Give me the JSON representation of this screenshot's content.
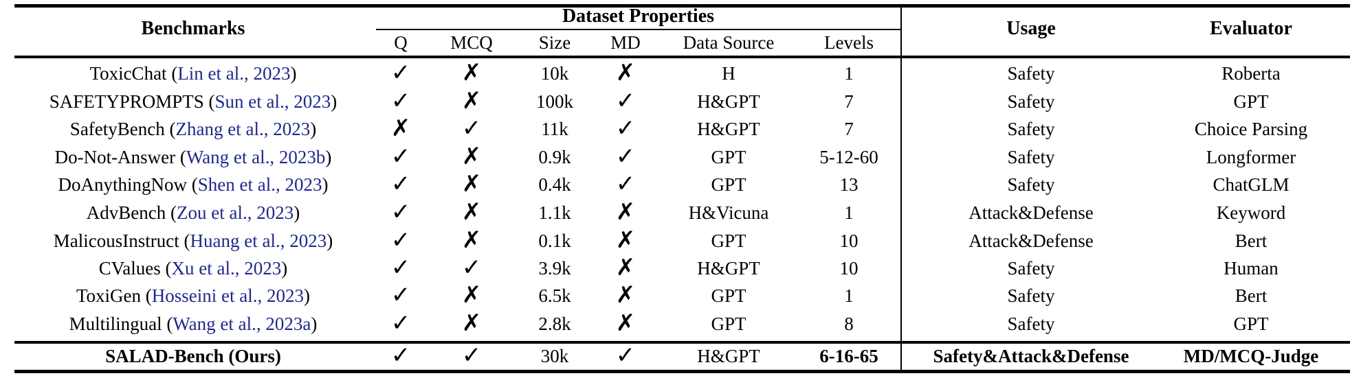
{
  "table": {
    "headers": {
      "benchmarks": "Benchmarks",
      "group": "Dataset Properties",
      "usage": "Usage",
      "evaluator": "Evaluator",
      "sub": [
        "Q",
        "MCQ",
        "Size",
        "MD",
        "Data Source",
        "Levels"
      ]
    },
    "rows": [
      {
        "name": "ToxicChat",
        "cite": "Lin et al., 2023",
        "q": "✓",
        "mcq": "✗",
        "size": "10k",
        "md": "✗",
        "source": "H",
        "levels": "1",
        "usage": "Safety",
        "evaluator": "Roberta"
      },
      {
        "name": "SAFETYPROMPTS",
        "cite": "Sun et al., 2023",
        "q": "✓",
        "mcq": "✗",
        "size": "100k",
        "md": "✓",
        "source": "H&GPT",
        "levels": "7",
        "usage": "Safety",
        "evaluator": "GPT"
      },
      {
        "name": "SafetyBench",
        "cite": "Zhang et al., 2023",
        "q": "✗",
        "mcq": "✓",
        "size": "11k",
        "md": "✓",
        "source": "H&GPT",
        "levels": "7",
        "usage": "Safety",
        "evaluator": "Choice Parsing"
      },
      {
        "name": "Do-Not-Answer",
        "cite": "Wang et al., 2023b",
        "q": "✓",
        "mcq": "✗",
        "size": "0.9k",
        "md": "✓",
        "source": "GPT",
        "levels": "5-12-60",
        "usage": "Safety",
        "evaluator": "Longformer"
      },
      {
        "name": "DoAnythingNow",
        "cite": "Shen et al., 2023",
        "q": "✓",
        "mcq": "✗",
        "size": "0.4k",
        "md": "✓",
        "source": "GPT",
        "levels": "13",
        "usage": "Safety",
        "evaluator": "ChatGLM"
      },
      {
        "name": "AdvBench",
        "cite": "Zou et al., 2023",
        "q": "✓",
        "mcq": "✗",
        "size": "1.1k",
        "md": "✗",
        "source": "H&Vicuna",
        "levels": "1",
        "usage": "Attack&Defense",
        "evaluator": "Keyword"
      },
      {
        "name": "MalicousInstruct",
        "cite": "Huang et al., 2023",
        "q": "✓",
        "mcq": "✗",
        "size": "0.1k",
        "md": "✗",
        "source": "GPT",
        "levels": "10",
        "usage": "Attack&Defense",
        "evaluator": "Bert"
      },
      {
        "name": "CValues",
        "cite": "Xu et al., 2023",
        "q": "✓",
        "mcq": "✓",
        "size": "3.9k",
        "md": "✗",
        "source": "H&GPT",
        "levels": "10",
        "usage": "Safety",
        "evaluator": "Human"
      },
      {
        "name": "ToxiGen",
        "cite": "Hosseini et al., 2023",
        "q": "✓",
        "mcq": "✗",
        "size": "6.5k",
        "md": "✗",
        "source": "GPT",
        "levels": "1",
        "usage": "Safety",
        "evaluator": "Bert"
      },
      {
        "name": "Multilingual",
        "cite": "Wang et al., 2023a",
        "q": "✓",
        "mcq": "✗",
        "size": "2.8k",
        "md": "✗",
        "source": "GPT",
        "levels": "8",
        "usage": "Safety",
        "evaluator": "GPT"
      }
    ],
    "ours": {
      "name": "SALAD-Bench (Ours)",
      "q": "✓",
      "mcq": "✓",
      "size": "30k",
      "md": "✓",
      "source": "H&GPT",
      "levels": "6-16-65",
      "usage": "Safety&Attack&Defense",
      "evaluator": "MD/MCQ-Judge"
    }
  }
}
